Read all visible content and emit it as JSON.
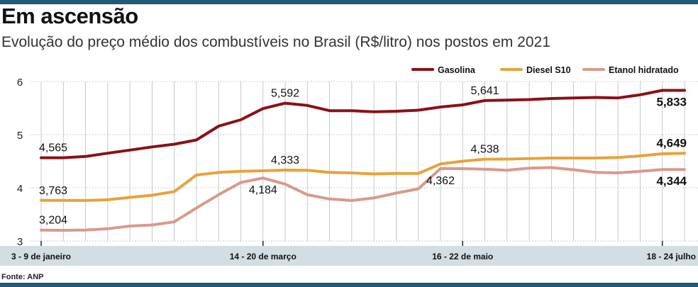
{
  "header": {
    "title": "Em ascensão",
    "subtitle": "Evolução do preço médio dos combustíveis no Brasil (R$/litro) nos postos em 2021"
  },
  "footer": {
    "source": "Fonte: ANP"
  },
  "colors": {
    "gasolina": "#8b1015",
    "diesel": "#e8a23a",
    "etanol": "#d89a8c",
    "axis_band": "#d3dde4",
    "grid": "#b4bcc2",
    "frame": "#1f5a78"
  },
  "chart_data": {
    "type": "line",
    "title": "Em ascensão",
    "subtitle": "Evolução do preço médio dos combustíveis no Brasil (R$/litro) nos postos em 2021",
    "ylabel": "R$/litro",
    "ylim": [
      3,
      6
    ],
    "yticks": [
      3,
      4,
      5,
      6
    ],
    "x_tick_labels": [
      {
        "index": 0,
        "label": "3 - 9 de janeiro"
      },
      {
        "index": 10,
        "label": "14 - 20 de março"
      },
      {
        "index": 19,
        "label": "16 - 22 de maio"
      },
      {
        "index": 28,
        "label": "18 - 24 julho"
      }
    ],
    "legend_position": "top-right",
    "series": [
      {
        "name": "Gasolina",
        "key": "gasolina",
        "values": [
          4.565,
          4.566,
          4.59,
          4.65,
          4.71,
          4.77,
          4.82,
          4.9,
          5.16,
          5.28,
          5.49,
          5.592,
          5.55,
          5.45,
          5.45,
          5.43,
          5.44,
          5.46,
          5.52,
          5.56,
          5.641,
          5.65,
          5.66,
          5.68,
          5.69,
          5.7,
          5.69,
          5.75,
          5.833,
          5.833
        ]
      },
      {
        "name": "Diesel S10",
        "key": "diesel",
        "values": [
          3.763,
          3.763,
          3.762,
          3.775,
          3.82,
          3.86,
          3.93,
          4.24,
          4.29,
          4.31,
          4.32,
          4.333,
          4.33,
          4.29,
          4.28,
          4.26,
          4.27,
          4.27,
          4.45,
          4.5,
          4.538,
          4.54,
          4.55,
          4.56,
          4.56,
          4.56,
          4.57,
          4.6,
          4.64,
          4.649
        ]
      },
      {
        "name": "Etanol hidratado",
        "key": "etanol",
        "values": [
          3.204,
          3.2,
          3.205,
          3.23,
          3.28,
          3.3,
          3.36,
          3.62,
          3.87,
          4.1,
          4.184,
          4.07,
          3.87,
          3.79,
          3.76,
          3.81,
          3.9,
          3.98,
          4.362,
          4.36,
          4.35,
          4.33,
          4.37,
          4.38,
          4.34,
          4.29,
          4.28,
          4.31,
          4.344,
          4.344
        ]
      }
    ],
    "annotations": [
      {
        "series": "gasolina",
        "index": 0,
        "text": "4,565",
        "bold": false,
        "place": "above"
      },
      {
        "series": "gasolina",
        "index": 11,
        "text": "5,592",
        "bold": false,
        "place": "above"
      },
      {
        "series": "gasolina",
        "index": 20,
        "text": "5,641",
        "bold": false,
        "place": "above"
      },
      {
        "series": "gasolina",
        "index": 29,
        "text": "5,833",
        "bold": true,
        "place": "below"
      },
      {
        "series": "diesel",
        "index": 0,
        "text": "3,763",
        "bold": false,
        "place": "above"
      },
      {
        "series": "diesel",
        "index": 11,
        "text": "4,333",
        "bold": false,
        "place": "above"
      },
      {
        "series": "diesel",
        "index": 20,
        "text": "4,538",
        "bold": false,
        "place": "above"
      },
      {
        "series": "diesel",
        "index": 29,
        "text": "4,649",
        "bold": true,
        "place": "above"
      },
      {
        "series": "etanol",
        "index": 0,
        "text": "3,204",
        "bold": false,
        "place": "above"
      },
      {
        "series": "etanol",
        "index": 10,
        "text": "4,184",
        "bold": false,
        "place": "below"
      },
      {
        "series": "etanol",
        "index": 18,
        "text": "4,362",
        "bold": false,
        "place": "below"
      },
      {
        "series": "etanol",
        "index": 29,
        "text": "4,344",
        "bold": true,
        "place": "below"
      }
    ]
  }
}
